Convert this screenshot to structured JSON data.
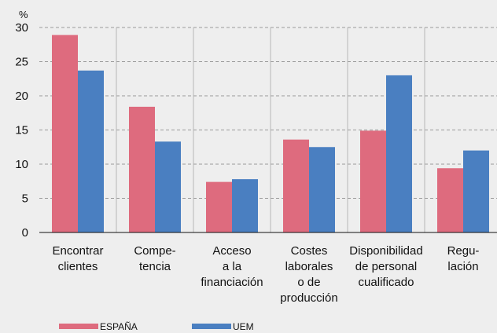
{
  "chart_data": {
    "type": "bar",
    "y_unit": "%",
    "ylim": [
      0,
      30
    ],
    "y_ticks": [
      0,
      5,
      10,
      15,
      20,
      25,
      30
    ],
    "grid": true,
    "legend_position": "bottom-left",
    "categories": [
      [
        "Encontrar",
        "clientes"
      ],
      [
        "Compe-",
        "tencia"
      ],
      [
        "Acceso",
        "a la",
        "financiación"
      ],
      [
        "Costes",
        "laborales",
        "o de",
        "producción"
      ],
      [
        "Disponibilidad",
        "de personal",
        "cualificado"
      ],
      [
        "Regu-",
        "lación"
      ]
    ],
    "series": [
      {
        "name": "ESPAÑA",
        "color": "#de6b7e",
        "values": [
          28.9,
          18.4,
          7.4,
          13.6,
          14.9,
          9.4
        ]
      },
      {
        "name": "UEM",
        "color": "#4a7fc1",
        "values": [
          23.7,
          13.3,
          7.8,
          12.5,
          23.0,
          12.0
        ]
      }
    ]
  }
}
